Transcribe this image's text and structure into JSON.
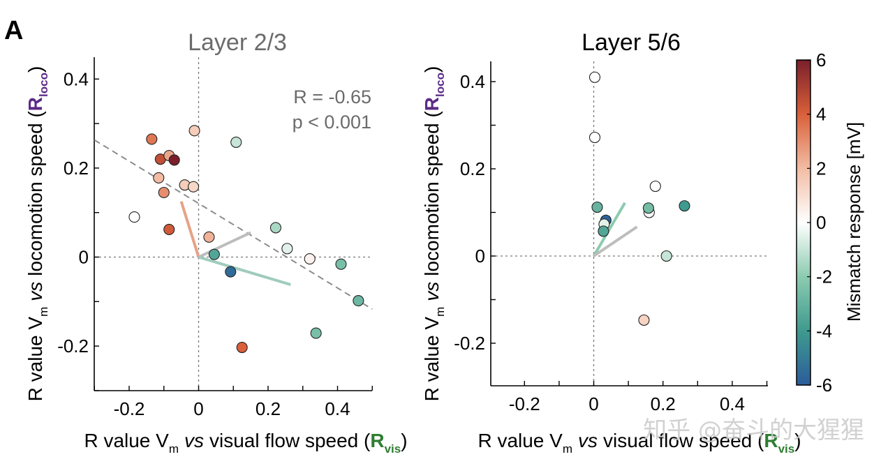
{
  "panel_letter": "A",
  "watermark": "知乎 @奋斗的大猩猩",
  "colorbar": {
    "label": "Mismatch response [mV]",
    "range": [
      -6,
      6
    ],
    "ticks": [
      "6",
      "4",
      "2",
      "0",
      "-2",
      "-4",
      "-6"
    ],
    "stops": [
      {
        "v": -6,
        "c": "#2b5c9b"
      },
      {
        "v": -4,
        "c": "#3f9a8f"
      },
      {
        "v": -2,
        "c": "#8ccbb0"
      },
      {
        "v": 0,
        "c": "#ffffff"
      },
      {
        "v": 2,
        "c": "#f2bca3"
      },
      {
        "v": 4,
        "c": "#d9603a"
      },
      {
        "v": 6,
        "c": "#7a1f2b"
      }
    ]
  },
  "chart_data": [
    {
      "type": "scatter",
      "title": "Layer 2/3",
      "title_color": "#6b6b6b",
      "xlabel": "R value V",
      "xlabel_sub": "m",
      "xlabel_vs": "vs",
      "xlabel_rest": "visual flow speed (",
      "xlabel_R": "R",
      "xlabel_R_sub": "vis",
      "xlabel_close": ")",
      "ylabel": "R value V",
      "ylabel_sub": "m",
      "ylabel_vs": "vs",
      "ylabel_rest": "locomotion speed (",
      "ylabel_R": "R",
      "ylabel_R_sub": "loco",
      "ylabel_close": ")",
      "xlim": [
        -0.3,
        0.5
      ],
      "ylim": [
        -0.3,
        0.45
      ],
      "xticks": [
        -0.2,
        0,
        0.2,
        0.4
      ],
      "xtick_labels": [
        "-0.2",
        "0",
        "0.2",
        "0.4"
      ],
      "yticks": [
        -0.2,
        0,
        0.2,
        0.4
      ],
      "ytick_labels": [
        "-0.2",
        "0",
        "0.2",
        "0.4"
      ],
      "stats": {
        "r_text": "R = -0.65",
        "p_text": "p < 0.001"
      },
      "regression": {
        "x": [
          -0.3,
          0.5
        ],
        "y": [
          0.263,
          -0.117
        ]
      },
      "vectors": [
        {
          "name": "positive",
          "color": "#e6a287",
          "to": [
            -0.05,
            0.125
          ]
        },
        {
          "name": "neutral",
          "color": "#bdbdbd",
          "to": [
            0.15,
            0.055
          ]
        },
        {
          "name": "negative",
          "color": "#9fcbbd",
          "to": [
            0.265,
            -0.062
          ]
        }
      ],
      "points": [
        {
          "x": -0.185,
          "y": 0.09,
          "mm": 0.0
        },
        {
          "x": -0.135,
          "y": 0.265,
          "mm": 3.5
        },
        {
          "x": -0.11,
          "y": 0.22,
          "mm": 4.5
        },
        {
          "x": -0.085,
          "y": 0.228,
          "mm": 2.5
        },
        {
          "x": -0.07,
          "y": 0.218,
          "mm": 6.0
        },
        {
          "x": -0.115,
          "y": 0.178,
          "mm": 2.0
        },
        {
          "x": -0.1,
          "y": 0.145,
          "mm": 3.0
        },
        {
          "x": -0.085,
          "y": 0.062,
          "mm": 4.2
        },
        {
          "x": -0.04,
          "y": 0.162,
          "mm": 1.5
        },
        {
          "x": -0.015,
          "y": 0.158,
          "mm": 1.2
        },
        {
          "x": -0.012,
          "y": 0.284,
          "mm": 1.5
        },
        {
          "x": 0.03,
          "y": 0.045,
          "mm": 2.2
        },
        {
          "x": 0.045,
          "y": 0.006,
          "mm": -3.5
        },
        {
          "x": 0.092,
          "y": -0.033,
          "mm": -5.5
        },
        {
          "x": 0.108,
          "y": 0.258,
          "mm": -1.0
        },
        {
          "x": 0.125,
          "y": -0.203,
          "mm": 4.0
        },
        {
          "x": 0.222,
          "y": 0.066,
          "mm": -1.5
        },
        {
          "x": 0.255,
          "y": 0.019,
          "mm": -0.5
        },
        {
          "x": 0.32,
          "y": -0.004,
          "mm": 0.4
        },
        {
          "x": 0.338,
          "y": -0.171,
          "mm": -2.5
        },
        {
          "x": 0.41,
          "y": -0.016,
          "mm": -2.5
        },
        {
          "x": 0.46,
          "y": -0.098,
          "mm": -2.8
        }
      ]
    },
    {
      "type": "scatter",
      "title": "Layer 5/6",
      "title_color": "#000000",
      "xlabel": "R value V",
      "xlabel_sub": "m",
      "xlabel_vs": "vs",
      "xlabel_rest": "visual flow speed (",
      "xlabel_R": "R",
      "xlabel_R_sub": "vis",
      "xlabel_close": ")",
      "ylabel": "R value V",
      "ylabel_sub": "m",
      "ylabel_vs": "vs",
      "ylabel_rest": "locomotion speed (",
      "ylabel_R": "R",
      "ylabel_R_sub": "loco",
      "ylabel_close": ")",
      "xlim": [
        -0.3,
        0.5
      ],
      "ylim": [
        -0.3,
        0.45
      ],
      "xticks": [
        -0.2,
        0,
        0.2,
        0.4
      ],
      "xtick_labels": [
        "-0.2",
        "0",
        "0.2",
        "0.4"
      ],
      "yticks": [
        -0.2,
        0,
        0.2,
        0.4
      ],
      "ytick_labels": [
        "-0.2",
        "0",
        "0.2",
        "0.4"
      ],
      "vectors": [
        {
          "name": "negative",
          "color": "#8ccbb0",
          "to": [
            0.09,
            0.122
          ]
        },
        {
          "name": "neutral",
          "color": "#bdbdbd",
          "to": [
            0.125,
            0.067
          ]
        }
      ],
      "points": [
        {
          "x": 0.003,
          "y": 0.41,
          "mm": 0.0
        },
        {
          "x": 0.003,
          "y": 0.272,
          "mm": 0.0
        },
        {
          "x": 0.01,
          "y": 0.112,
          "mm": -3.0
        },
        {
          "x": 0.035,
          "y": 0.082,
          "mm": -5.8
        },
        {
          "x": 0.03,
          "y": 0.073,
          "mm": -0.5
        },
        {
          "x": 0.028,
          "y": 0.057,
          "mm": -3.5
        },
        {
          "x": 0.16,
          "y": 0.1,
          "mm": 0.0
        },
        {
          "x": 0.158,
          "y": 0.11,
          "mm": -2.6
        },
        {
          "x": 0.178,
          "y": 0.16,
          "mm": 0.0
        },
        {
          "x": 0.21,
          "y": 0.0,
          "mm": -1.0
        },
        {
          "x": 0.262,
          "y": 0.115,
          "mm": -4.0
        },
        {
          "x": 0.145,
          "y": -0.147,
          "mm": 1.3
        }
      ]
    }
  ]
}
